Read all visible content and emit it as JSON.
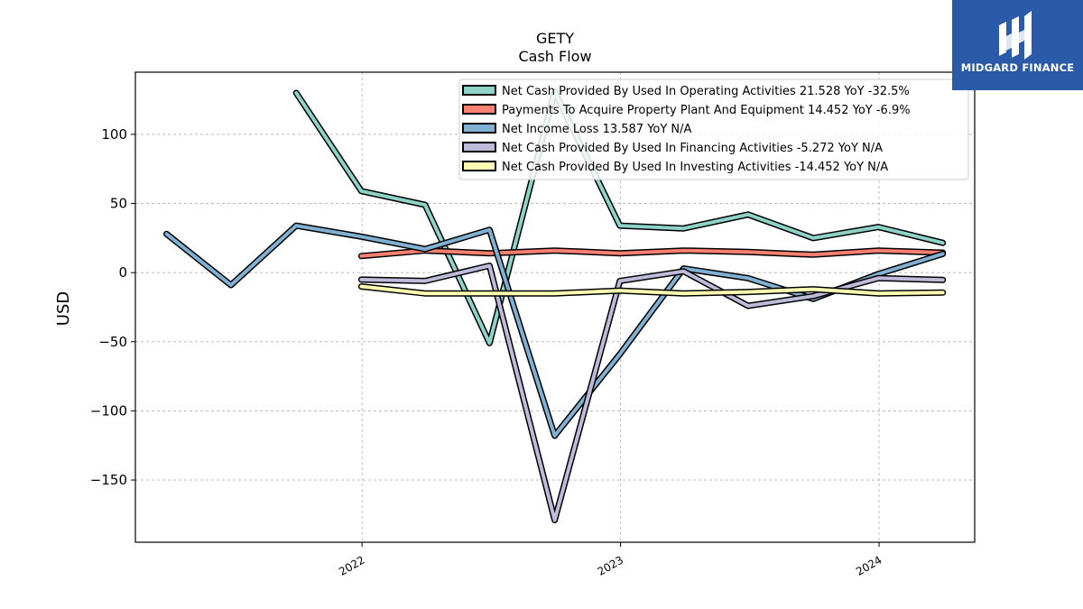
{
  "logo": {
    "text": "MIDGARD FINANCE",
    "color": "#2b5aa8"
  },
  "chart_data": {
    "type": "line",
    "title": "GETY",
    "subtitle": "Cash Flow",
    "ylabel": "USD",
    "xlabel": "",
    "ylim": [
      -195,
      145
    ],
    "yticks": [
      100,
      50,
      0,
      -50,
      -100,
      -150
    ],
    "xlim": [
      "2021-02-15",
      "2024-05-15"
    ],
    "xticks": [
      {
        "date": "2022-01-01",
        "label": "2022"
      },
      {
        "date": "2023-01-01",
        "label": "2023"
      },
      {
        "date": "2024-01-01",
        "label": "2024"
      }
    ],
    "grid": true,
    "legend_position": "top-right",
    "series": [
      {
        "name": "Net Cash Provided By Used In Operating Activities",
        "legend_label": "Net Cash Provided By Used In Operating Activities  21.528 YoY -32.5%",
        "color": "#8dd3c7",
        "x": [
          "2021-09-30",
          "2021-12-31",
          "2022-03-31",
          "2022-06-30",
          "2022-09-30",
          "2022-12-31",
          "2023-03-31",
          "2023-06-30",
          "2023-09-30",
          "2023-12-31",
          "2024-03-31"
        ],
        "y": [
          130,
          59,
          49,
          -51,
          131,
          34,
          32,
          42,
          25,
          33,
          21.528
        ]
      },
      {
        "name": "Payments To Acquire Property Plant And Equipment",
        "legend_label": "Payments To Acquire Property Plant And Equipment  14.452 YoY -6.9%",
        "color": "#fb8072",
        "x": [
          "2021-12-31",
          "2022-03-31",
          "2022-06-30",
          "2022-09-30",
          "2022-12-31",
          "2023-03-31",
          "2023-06-30",
          "2023-09-30",
          "2023-12-31",
          "2024-03-31"
        ],
        "y": [
          12,
          16,
          14,
          16,
          14,
          16,
          15,
          13,
          16,
          14.452
        ]
      },
      {
        "name": "Net Income Loss",
        "legend_label": "Net Income Loss  13.587 YoY N/A",
        "color": "#80b1d3",
        "x": [
          "2021-03-31",
          "2021-06-30",
          "2021-09-30",
          "2021-12-31",
          "2022-03-31",
          "2022-06-30",
          "2022-09-30",
          "2022-12-31",
          "2023-03-31",
          "2023-06-30",
          "2023-09-30",
          "2023-12-31",
          "2024-03-31"
        ],
        "y": [
          28,
          -9,
          34,
          26,
          17,
          31,
          -118,
          -59,
          3,
          -4,
          -19,
          -1,
          13.587
        ]
      },
      {
        "name": "Net Cash Provided By Used In Financing Activities",
        "legend_label": "Net Cash Provided By Used In Financing Activities  -5.272 YoY N/A",
        "color": "#bebada",
        "x": [
          "2021-12-31",
          "2022-03-31",
          "2022-06-30",
          "2022-09-30",
          "2022-12-31",
          "2023-03-31",
          "2023-06-30",
          "2023-09-30",
          "2023-12-31",
          "2024-03-31"
        ],
        "y": [
          -5,
          -6,
          5,
          -179,
          -6,
          1,
          -24,
          -17,
          -4,
          -5.272
        ]
      },
      {
        "name": "Net Cash Provided By Used In Investing Activities",
        "legend_label": "Net Cash Provided By Used In Investing Activities  -14.452 YoY N/A",
        "color": "#ffffb3",
        "x": [
          "2021-12-31",
          "2022-03-31",
          "2022-06-30",
          "2022-09-30",
          "2022-12-31",
          "2023-03-31",
          "2023-06-30",
          "2023-09-30",
          "2023-12-31",
          "2024-03-31"
        ],
        "y": [
          -10,
          -15,
          -15,
          -15,
          -13,
          -15,
          -14,
          -12,
          -15,
          -14.452
        ]
      }
    ]
  }
}
